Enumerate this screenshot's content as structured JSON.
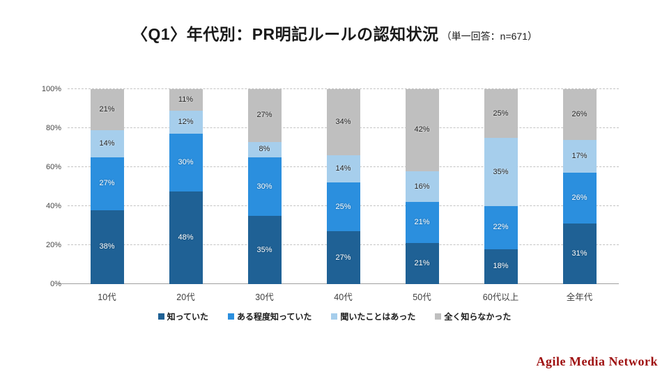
{
  "header": {
    "title": "〈Q1〉年代別：PR明記ルールの認知状況",
    "subtitle": "（単一回答：n=671）"
  },
  "footer": {
    "brand": "Agile Media Network",
    "brand_color": "#9E0F0F"
  },
  "chart_data": {
    "type": "bar",
    "variant": "stacked-column-100",
    "title": "〈Q1〉年代別：PR明記ルールの認知状況（単一回答：n=671）",
    "categories": [
      "10代",
      "20代",
      "30代",
      "40代",
      "50代",
      "60代以上",
      "全年代"
    ],
    "series": [
      {
        "name": "知っていた",
        "color": "#1F6195",
        "label_style": "on-dark",
        "values": [
          38,
          48,
          35,
          27,
          21,
          18,
          31
        ]
      },
      {
        "name": "ある程度知っていた",
        "color": "#2B8FDE",
        "label_style": "on-dark",
        "values": [
          27,
          30,
          30,
          25,
          21,
          22,
          26
        ]
      },
      {
        "name": "聞いたことはあった",
        "color": "#A6CEEC",
        "label_style": "on-light",
        "values": [
          14,
          12,
          8,
          14,
          16,
          35,
          17
        ]
      },
      {
        "name": "全く知らなかった",
        "color": "#BFBFBF",
        "label_style": "on-light",
        "values": [
          21,
          11,
          27,
          34,
          42,
          25,
          26
        ]
      }
    ],
    "value_suffix": "%",
    "ylim": [
      0,
      100
    ],
    "yticks": [
      {
        "label": "0%",
        "value": 0
      },
      {
        "label": "20%",
        "value": 20
      },
      {
        "label": "40%",
        "value": 40
      },
      {
        "label": "60%",
        "value": 60
      },
      {
        "label": "80%",
        "value": 80
      },
      {
        "label": "100%",
        "value": 100
      }
    ],
    "grid": "horizontal-dashed",
    "legend_position": "bottom"
  }
}
